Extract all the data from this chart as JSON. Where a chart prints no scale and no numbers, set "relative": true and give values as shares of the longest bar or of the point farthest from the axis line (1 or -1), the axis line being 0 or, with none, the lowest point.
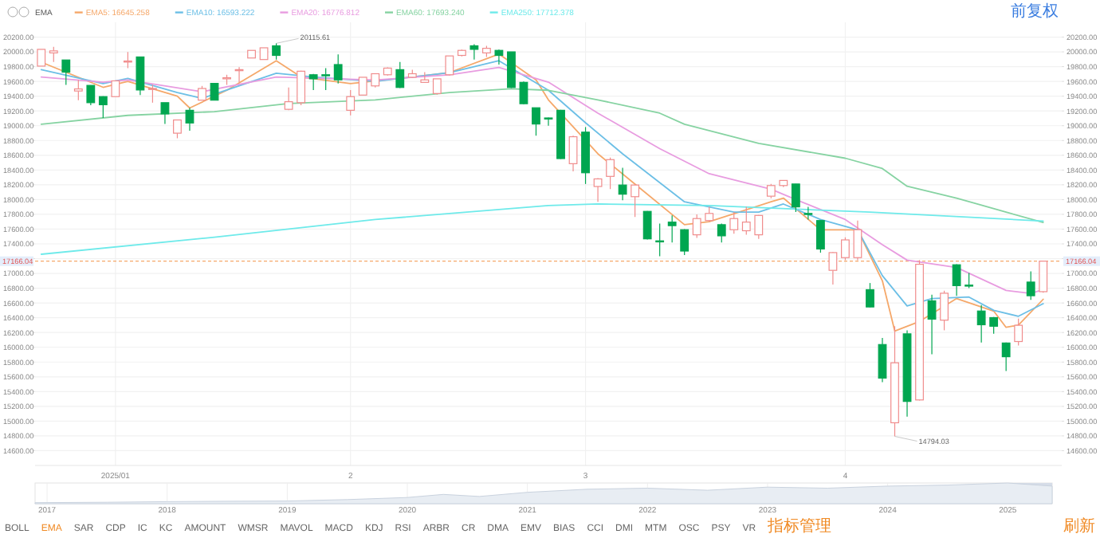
{
  "chart_data": [
    {
      "type": "candlestick",
      "grid": true,
      "legend": "top left",
      "categories": [
        null,
        null,
        null,
        null,
        null,
        null,
        "2025/01",
        null,
        null,
        null,
        null,
        null,
        null,
        null,
        null,
        null,
        null,
        null,
        null,
        null,
        null,
        null,
        null,
        null,
        null,
        "2",
        null,
        null,
        null,
        null,
        null,
        null,
        null,
        null,
        null,
        null,
        null,
        null,
        null,
        null,
        null,
        null,
        null,
        null,
        "3",
        null,
        null,
        null,
        null,
        null,
        null,
        null,
        null,
        null,
        null,
        null,
        null,
        null,
        null,
        null,
        null,
        null,
        null,
        null,
        null,
        "4",
        null,
        null,
        null,
        null,
        null,
        null,
        null,
        null,
        null,
        null,
        null,
        null,
        null,
        null,
        null,
        null
      ],
      "ohlc": [
        [
          19807,
          20034,
          19807,
          20034
        ],
        [
          19986,
          20068,
          19862,
          20013
        ],
        [
          19890,
          19890,
          19553,
          19725
        ],
        [
          19470,
          19621,
          19346,
          19498
        ],
        [
          19546,
          19546,
          19277,
          19312
        ],
        [
          19394,
          19400,
          19105,
          19284
        ],
        [
          19394,
          19610,
          19394,
          19607
        ],
        [
          19862,
          19999,
          19780,
          19876
        ],
        [
          19931,
          19931,
          19415,
          19484
        ],
        [
          19491,
          19553,
          19312,
          19504
        ],
        [
          19312,
          19312,
          19023,
          19160
        ],
        [
          18899,
          19078,
          18830,
          19078
        ],
        [
          19209,
          19243,
          18933,
          19037
        ],
        [
          19346,
          19539,
          19346,
          19504
        ],
        [
          19573,
          19573,
          19346,
          19346
        ],
        [
          19635,
          19690,
          19553,
          19650
        ],
        [
          19745,
          19793,
          19587,
          19759
        ],
        [
          19917,
          20020,
          19917,
          20020
        ],
        [
          19896,
          20055,
          19896,
          20055
        ],
        [
          20082,
          20115.61,
          19896,
          19952
        ],
        [
          19222,
          19518,
          19209,
          19325
        ],
        [
          19312,
          19745,
          19277,
          19738
        ],
        [
          19690,
          19700,
          19484,
          19635
        ],
        [
          19690,
          19780,
          19484,
          19676
        ],
        [
          19828,
          19965,
          19573,
          19621
        ],
        [
          19209,
          19484,
          19140,
          19394
        ],
        [
          19415,
          19656,
          19415,
          19656
        ],
        [
          19539,
          19710,
          19518,
          19704
        ],
        [
          19690,
          19790,
          19680,
          19780
        ],
        [
          19759,
          19862,
          19510,
          19518
        ],
        [
          19656,
          19759,
          19650,
          19704
        ],
        [
          19587,
          19725,
          19580,
          19621
        ],
        [
          19436,
          19635,
          19420,
          19635
        ],
        [
          19690,
          19945,
          19680,
          19945
        ],
        [
          19952,
          20030,
          19940,
          20020
        ],
        [
          20082,
          20103,
          19896,
          20034
        ],
        [
          19986,
          20082,
          19931,
          20048
        ],
        [
          20020,
          20030,
          19828,
          19952
        ],
        [
          20000,
          20000,
          19510,
          19518
        ],
        [
          19587,
          19600,
          19290,
          19298
        ],
        [
          19243,
          19243,
          18865,
          19023
        ],
        [
          19105,
          19110,
          19000,
          19091
        ],
        [
          19209,
          19215,
          18550,
          18555
        ],
        [
          18486,
          18865,
          18383,
          18851
        ],
        [
          18913,
          18982,
          18211,
          18363
        ],
        [
          18177,
          18290,
          17970,
          18280
        ],
        [
          18314,
          18569,
          18142,
          18541
        ],
        [
          18197,
          18431,
          17991,
          18073
        ],
        [
          18039,
          18210,
          17764,
          18197
        ],
        [
          17840,
          17845,
          17460,
          17468
        ],
        [
          17441,
          17675,
          17234,
          17427
        ],
        [
          17695,
          17785,
          17420,
          17647
        ],
        [
          17592,
          17600,
          17248,
          17303
        ],
        [
          17523,
          17798,
          17482,
          17743
        ],
        [
          17716,
          17901,
          17700,
          17812
        ],
        [
          17660,
          17675,
          17420,
          17509
        ],
        [
          17592,
          17833,
          17537,
          17743
        ],
        [
          17578,
          17901,
          17523,
          17695
        ],
        [
          17523,
          17790,
          17468,
          17785
        ],
        [
          18046,
          18211,
          18018,
          18190
        ],
        [
          18190,
          18259,
          18170,
          18259
        ],
        [
          18211,
          18215,
          17833,
          17901
        ],
        [
          17812,
          17901,
          17730,
          17798
        ],
        [
          17716,
          17720,
          17282,
          17331
        ],
        [
          17042,
          17290,
          16849,
          17282
        ],
        [
          17214,
          17489,
          17180,
          17454
        ],
        [
          17214,
          17716,
          17180,
          17592
        ],
        [
          16780,
          16870,
          16540,
          16546
        ],
        [
          16037,
          16127,
          15528,
          15583
        ],
        [
          14978,
          16285,
          14794.03,
          15790
        ],
        [
          16182,
          16230,
          15060,
          15267
        ],
        [
          15287,
          17180,
          15280,
          17124
        ],
        [
          16629,
          16711,
          15906,
          16381
        ],
        [
          16367,
          16766,
          16230,
          16732
        ],
        [
          17117,
          17124,
          16697,
          16835
        ],
        [
          16842,
          17007,
          16800,
          16828
        ],
        [
          16491,
          16573,
          16065,
          16305
        ],
        [
          16402,
          16410,
          16182,
          16285
        ],
        [
          16058,
          16065,
          15680,
          15872
        ],
        [
          16078,
          16388,
          16024,
          16298
        ],
        [
          16883,
          17028,
          16642,
          16698
        ],
        [
          16753,
          17166.04,
          16740,
          17166.04
        ]
      ],
      "colors": [
        "#f08c8c",
        "#f08c8c",
        "#00a650",
        "#f08c8c",
        "#00a650",
        "#00a650",
        "#f08c8c",
        "#f08c8c",
        "#00a650",
        "#f08c8c",
        "#00a650",
        "#f08c8c",
        "#00a650",
        "#f08c8c",
        "#00a650",
        "#f08c8c",
        "#f08c8c",
        "#f08c8c",
        "#f08c8c",
        "#00a650",
        "#f08c8c",
        "#f08c8c",
        "#00a650",
        "#00a650",
        "#00a650",
        "#f08c8c",
        "#f08c8c",
        "#f08c8c",
        "#f08c8c",
        "#00a650",
        "#f08c8c",
        "#f08c8c",
        "#f08c8c",
        "#f08c8c",
        "#f08c8c",
        "#00a650",
        "#f08c8c",
        "#00a650",
        "#00a650",
        "#00a650",
        "#00a650",
        "#00a650",
        "#00a650",
        "#f08c8c",
        "#00a650",
        "#f08c8c",
        "#f08c8c",
        "#00a650",
        "#f08c8c",
        "#00a650",
        "#00a650",
        "#00a650",
        "#00a650",
        "#f08c8c",
        "#f08c8c",
        "#00a650",
        "#f08c8c",
        "#f08c8c",
        "#f08c8c",
        "#f08c8c",
        "#f08c8c",
        "#00a650",
        "#00a650",
        "#00a650",
        "#f08c8c",
        "#f08c8c",
        "#f08c8c",
        "#00a650",
        "#00a650",
        "#f08c8c",
        "#00a650",
        "#f08c8c",
        "#00a650",
        "#f08c8c",
        "#00a650",
        "#00a650",
        "#00a650",
        "#00a650",
        "#00a650",
        "#f08c8c",
        "#00a650",
        "#f08c8c"
      ],
      "series": [
        {
          "type": "line",
          "name": "EMA5: 16645.258",
          "color": "#f5a86a",
          "values": [
            19860,
            null,
            null,
            null,
            null,
            19520,
            null,
            19600,
            null,
            null,
            null,
            19400,
            19240,
            null,
            null,
            19480,
            null,
            null,
            null,
            19880,
            null,
            19660,
            null,
            null,
            null,
            19570,
            null,
            null,
            null,
            null,
            19660,
            null,
            null,
            19720,
            null,
            null,
            null,
            19970,
            null,
            null,
            19620,
            19350,
            null,
            null,
            null,
            18620,
            null,
            null,
            18210,
            null,
            null,
            null,
            17660,
            null,
            17700,
            null,
            null,
            null,
            null,
            17970,
            18020,
            null,
            null,
            17590,
            null,
            null,
            17590,
            null,
            16900,
            16220,
            null,
            16350,
            null,
            null,
            16660,
            null,
            null,
            16490,
            16270,
            16300,
            null,
            16650
          ]
        },
        {
          "type": "line",
          "name": "EMA10: 16593.222",
          "color": "#6cbfe6",
          "values": [
            19760,
            null,
            null,
            null,
            null,
            19570,
            null,
            19640,
            null,
            null,
            null,
            19450,
            null,
            19370,
            null,
            null,
            null,
            null,
            null,
            19710,
            null,
            null,
            19660,
            null,
            null,
            null,
            null,
            19600,
            null,
            null,
            null,
            null,
            null,
            19720,
            null,
            null,
            null,
            19880,
            null,
            null,
            null,
            19480,
            null,
            null,
            19040,
            null,
            null,
            18620,
            null,
            null,
            null,
            null,
            17970,
            null,
            null,
            null,
            17830,
            null,
            17830,
            null,
            17940,
            null,
            null,
            17730,
            null,
            null,
            17590,
            null,
            16970,
            null,
            16560,
            null,
            16660,
            null,
            null,
            16680,
            null,
            16500,
            null,
            16420,
            null,
            16590
          ]
        },
        {
          "type": "line",
          "name": "EMA20: 16776.812",
          "color": "#e89ce0",
          "values": [
            19660,
            null,
            null,
            null,
            null,
            19590,
            null,
            19620,
            null,
            null,
            null,
            null,
            null,
            19460,
            null,
            null,
            null,
            null,
            null,
            19660,
            null,
            null,
            null,
            null,
            null,
            null,
            null,
            19620,
            null,
            null,
            null,
            null,
            null,
            19690,
            null,
            null,
            null,
            19790,
            null,
            null,
            null,
            19590,
            null,
            null,
            null,
            19170,
            null,
            null,
            null,
            null,
            18690,
            null,
            null,
            null,
            18350,
            null,
            null,
            null,
            null,
            18140,
            null,
            18000,
            null,
            null,
            null,
            17730,
            null,
            null,
            17390,
            null,
            17180,
            null,
            null,
            null,
            17080,
            null,
            null,
            null,
            16770,
            null,
            16730,
            16780
          ]
        },
        {
          "type": "line",
          "name": "EMA60: 17693.240",
          "color": "#86d3a2",
          "values": [
            19020,
            null,
            null,
            null,
            null,
            null,
            null,
            19140,
            null,
            null,
            null,
            null,
            null,
            null,
            19190,
            null,
            null,
            null,
            null,
            null,
            19300,
            null,
            null,
            null,
            null,
            null,
            null,
            19350,
            null,
            null,
            null,
            null,
            null,
            19450,
            null,
            null,
            null,
            null,
            19500,
            null,
            null,
            19480,
            null,
            null,
            null,
            19350,
            null,
            null,
            null,
            null,
            19170,
            null,
            19020,
            null,
            null,
            null,
            null,
            null,
            18760,
            null,
            null,
            null,
            null,
            null,
            null,
            18560,
            null,
            null,
            18420,
            null,
            18180,
            null,
            null,
            null,
            18020,
            null,
            null,
            null,
            17830,
            null,
            null,
            17690
          ]
        },
        {
          "type": "line",
          "name": "EMA250: 17712.378",
          "color": "#6eeaea",
          "values": [
            17260,
            null,
            null,
            null,
            null,
            null,
            null,
            null,
            null,
            null,
            null,
            null,
            null,
            null,
            17490,
            null,
            null,
            null,
            null,
            null,
            null,
            null,
            null,
            null,
            null,
            null,
            null,
            17730,
            null,
            null,
            null,
            null,
            null,
            null,
            null,
            null,
            null,
            null,
            null,
            null,
            null,
            17920,
            null,
            null,
            null,
            17940,
            null,
            null,
            null,
            null,
            null,
            null,
            null,
            null,
            17920,
            null,
            null,
            null,
            null,
            null,
            null,
            null,
            null,
            null,
            null,
            null,
            null,
            17830,
            null,
            null,
            null,
            null,
            null,
            null,
            null,
            null,
            null,
            null,
            null,
            null,
            null,
            17710
          ]
        }
      ],
      "ylim": [
        14400,
        20400
      ],
      "yticks": [
        {
          "value": 14600,
          "label": "14600.00"
        },
        {
          "value": 14800,
          "label": "14800.00"
        },
        {
          "value": 15000,
          "label": "15000.00"
        },
        {
          "value": 15200,
          "label": "15200.00"
        },
        {
          "value": 15400,
          "label": "15400.00"
        },
        {
          "value": 15600,
          "label": "15600.00"
        },
        {
          "value": 15800,
          "label": "15800.00"
        },
        {
          "value": 16000,
          "label": "16000.00"
        },
        {
          "value": 16200,
          "label": "16200.00"
        },
        {
          "value": 16400,
          "label": "16400.00"
        },
        {
          "value": 16600,
          "label": "16600.00"
        },
        {
          "value": 16800,
          "label": "16800.00"
        },
        {
          "value": 17000,
          "label": "17000.00"
        },
        {
          "value": 17200,
          "label": null
        },
        {
          "value": 17400,
          "label": "17400.00"
        },
        {
          "value": 17600,
          "label": "17600.00"
        },
        {
          "value": 17800,
          "label": "17800.00"
        },
        {
          "value": 18000,
          "label": "18000.00"
        },
        {
          "value": 18200,
          "label": "18200.00"
        },
        {
          "value": 18400,
          "label": "18400.00"
        },
        {
          "value": 18600,
          "label": "18600.00"
        },
        {
          "value": 18800,
          "label": "18800.00"
        },
        {
          "value": 19000,
          "label": "19000.00"
        },
        {
          "value": 19200,
          "label": "19200.00"
        },
        {
          "value": 19400,
          "label": "19400.00"
        },
        {
          "value": 19600,
          "label": "19600.00"
        },
        {
          "value": 19800,
          "label": "19800.00"
        },
        {
          "value": 20000,
          "label": "20000.00"
        },
        {
          "value": 20200,
          "label": "20200.00"
        }
      ],
      "y2lim": [
        14400,
        20400
      ],
      "y2ticks": [
        {
          "value": 14600,
          "label": "14600.00"
        },
        {
          "value": 14800,
          "label": "14800.00"
        },
        {
          "value": 15000,
          "label": "15000.00"
        },
        {
          "value": 15200,
          "label": "15200.00"
        },
        {
          "value": 15400,
          "label": "15400.00"
        },
        {
          "value": 15600,
          "label": "15600.00"
        },
        {
          "value": 15800,
          "label": "15800.00"
        },
        {
          "value": 16000,
          "label": "16000.00"
        },
        {
          "value": 16200,
          "label": "16200.00"
        },
        {
          "value": 16400,
          "label": "16400.00"
        },
        {
          "value": 16600,
          "label": "16600.00"
        },
        {
          "value": 16800,
          "label": "16800.00"
        },
        {
          "value": 17000,
          "label": "17000.00"
        },
        {
          "value": 17200,
          "label": null
        },
        {
          "value": 17400,
          "label": "17400.00"
        },
        {
          "value": 17600,
          "label": "17600.00"
        },
        {
          "value": 17800,
          "label": "17800.00"
        },
        {
          "value": 18000,
          "label": "18000.00"
        },
        {
          "value": 18200,
          "label": "18200.00"
        },
        {
          "value": 18400,
          "label": "18400.00"
        },
        {
          "value": 18600,
          "label": "18600.00"
        },
        {
          "value": 18800,
          "label": "18800.00"
        },
        {
          "value": 19000,
          "label": "19000.00"
        },
        {
          "value": 19200,
          "label": "19200.00"
        },
        {
          "value": 19400,
          "label": "19400.00"
        },
        {
          "value": 19600,
          "label": "19600.00"
        },
        {
          "value": 19800,
          "label": "19800.00"
        },
        {
          "value": 20000,
          "label": "20000.00"
        },
        {
          "value": 20200,
          "label": "20200.00"
        }
      ],
      "ref_lines": [
        {
          "axis": "y",
          "value": 17166.04,
          "label": "17166.04",
          "color": "#f5a86a",
          "line_style": "dashed"
        }
      ],
      "annotations": [
        "20115.61",
        "14794.03",
        "EMA",
        "前复权"
      ]
    },
    {
      "type": "area",
      "relative": true,
      "grid": "x",
      "color": "#e8edf3",
      "x": [
        2016.9,
        2017.5,
        2018,
        2018.5,
        2019,
        2019.5,
        2020,
        2020.3,
        2020.6,
        2021,
        2021.5,
        2022,
        2022.5,
        2023,
        2023.5,
        2024,
        2024.5,
        2025,
        2025.37
      ],
      "values": [
        0.05,
        0.07,
        0.1,
        0.12,
        0.13,
        0.2,
        0.3,
        0.45,
        0.35,
        0.55,
        0.7,
        0.75,
        0.65,
        0.8,
        0.75,
        0.85,
        0.9,
        1,
        0.85
      ],
      "xlim": [
        2016.9,
        2025.37
      ],
      "xticks": [
        2017,
        2018,
        2019,
        2020,
        2021,
        2022,
        2023,
        2024,
        2025
      ],
      "bands": [
        {
          "axis": "x",
          "from": 2025,
          "to": 2025.37,
          "color": "#d6dde8"
        }
      ],
      "annotations": [
        "BOLL",
        "EMA",
        "SAR",
        "CDP",
        "IC",
        "KC",
        "AMOUNT",
        "WMSR",
        "MAVOL",
        "MACD",
        "KDJ",
        "RSI",
        "ARBR",
        "CR",
        "DMA",
        "EMV",
        "BIAS",
        "CCI",
        "DMI",
        "MTM",
        "OSC",
        "PSY",
        "VR",
        "指标管理",
        "刷新"
      ]
    }
  ]
}
